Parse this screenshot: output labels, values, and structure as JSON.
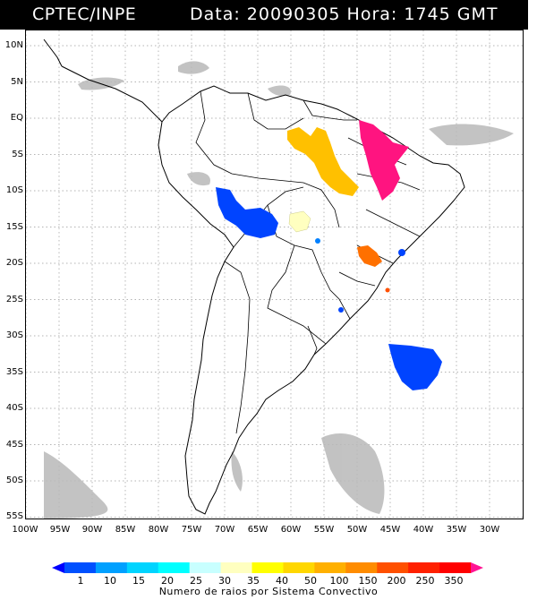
{
  "header": {
    "institution": "CPTEC/INPE",
    "meta": "Data: 20090305 Hora: 1745 GMT"
  },
  "axes": {
    "lat_labels": [
      "10N",
      "5N",
      "EQ",
      "5S",
      "10S",
      "15S",
      "20S",
      "25S",
      "30S",
      "35S",
      "40S",
      "45S",
      "50S",
      "55S"
    ],
    "lon_labels": [
      "100W",
      "95W",
      "90W",
      "85W",
      "80W",
      "75W",
      "70W",
      "65W",
      "60W",
      "55W",
      "50W",
      "45W",
      "40W",
      "35W",
      "30W"
    ]
  },
  "colorbar": {
    "ticks": [
      "1",
      "10",
      "15",
      "20",
      "25",
      "30",
      "35",
      "40",
      "50",
      "100",
      "150",
      "200",
      "250",
      "350"
    ],
    "colors": [
      "#0000ff",
      "#0050ff",
      "#00a0ff",
      "#00d4ff",
      "#00ffff",
      "#c8ffff",
      "#ffffc0",
      "#ffff00",
      "#ffd700",
      "#ffb000",
      "#ff8c00",
      "#ff5000",
      "#ff2000",
      "#ff0000",
      "#ff1493"
    ],
    "title": "Numero de raios por Sistema Convectivo"
  },
  "lightning_clusters": [
    {
      "name": "northern-amazon-cluster",
      "color": "#ffc000"
    },
    {
      "name": "northeast-brazil-cluster",
      "color": "#ff1480"
    },
    {
      "name": "bolivia-cluster",
      "color": "#0044ff"
    },
    {
      "name": "mato-grosso-cluster",
      "color": "#ffffc0"
    },
    {
      "name": "southeast-brazil-cluster",
      "color": "#ff7000"
    },
    {
      "name": "south-atlantic-cluster",
      "color": "#0044ff"
    }
  ]
}
